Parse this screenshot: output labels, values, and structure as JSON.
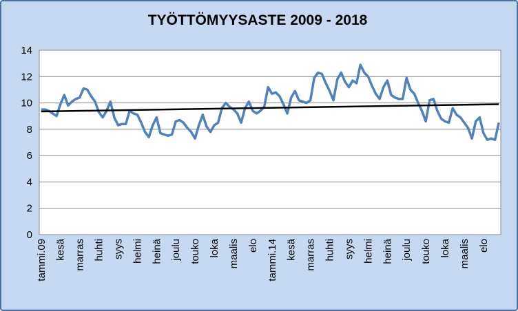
{
  "chart_data": {
    "type": "line",
    "title": "TYÖTTÖMYYSASTE 2009 - 2018",
    "xlabel": "",
    "ylabel": "",
    "ylim": [
      0,
      14
    ],
    "yticks": [
      0,
      2,
      4,
      6,
      8,
      10,
      12,
      14
    ],
    "grid": true,
    "legend": "none",
    "x_tick_labels": [
      "tammi.09",
      "kesä",
      "marras",
      "huhti",
      "syys",
      "helmi",
      "heinä",
      "joulu",
      "touko",
      "loka",
      "maalis",
      "elo",
      "tammi.14",
      "kesä",
      "marras",
      "huhti",
      "syys",
      "helmi",
      "heinä",
      "joulu",
      "touko",
      "loka",
      "maalis",
      "elo"
    ],
    "x_tick_every": 5,
    "series": [
      {
        "color": "#4f81bd",
        "values": [
          9.5,
          9.5,
          9.4,
          9.2,
          9.0,
          9.9,
          10.6,
          9.8,
          10.1,
          10.3,
          10.4,
          11.1,
          11.0,
          10.5,
          10.1,
          9.3,
          8.9,
          9.4,
          10.1,
          8.9,
          8.3,
          8.4,
          8.4,
          9.4,
          9.2,
          9.1,
          8.5,
          7.8,
          7.4,
          8.3,
          8.9,
          7.7,
          7.6,
          7.5,
          7.6,
          8.6,
          8.7,
          8.5,
          8.1,
          7.8,
          7.3,
          8.3,
          9.1,
          8.2,
          7.8,
          8.3,
          8.5,
          9.6,
          10.0,
          9.7,
          9.5,
          9.2,
          8.5,
          9.6,
          10.1,
          9.4,
          9.2,
          9.4,
          9.7,
          11.2,
          10.7,
          10.8,
          10.5,
          9.9,
          9.2,
          10.4,
          10.9,
          10.2,
          10.1,
          10.0,
          10.2,
          11.9,
          12.3,
          12.2,
          11.5,
          10.9,
          10.2,
          11.8,
          12.3,
          11.6,
          11.2,
          11.7,
          11.5,
          12.9,
          12.3,
          12.0,
          11.3,
          10.7,
          10.3,
          11.2,
          11.7,
          10.6,
          10.4,
          10.3,
          10.3,
          11.9,
          11.0,
          10.7,
          10.0,
          9.4,
          8.6,
          10.2,
          10.3,
          9.4,
          8.8,
          8.6,
          8.5,
          9.6,
          9.1,
          8.9,
          8.5,
          8.1,
          7.3,
          8.6,
          8.9,
          7.7,
          7.2,
          7.3,
          7.2,
          8.5
        ]
      },
      {
        "color": "#000000",
        "values": [
          9.35,
          9.9
        ]
      }
    ]
  }
}
